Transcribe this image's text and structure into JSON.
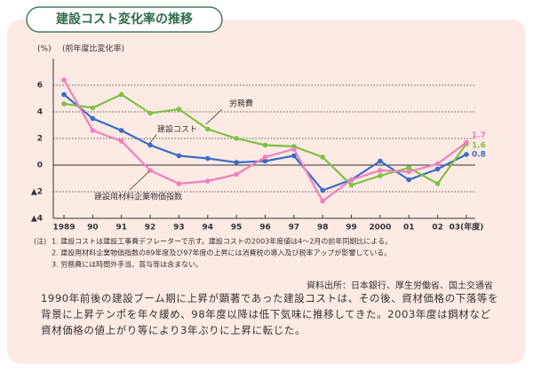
{
  "title": "建設コスト変化率の推移",
  "chart_data": {
    "type": "line",
    "y_unit": "(%)",
    "ylabel": "(前年度比変化率)",
    "categories": [
      "1989",
      "90",
      "91",
      "92",
      "93",
      "94",
      "95",
      "96",
      "97",
      "98",
      "99",
      "2000",
      "01",
      "02",
      "03(年度)"
    ],
    "series": [
      {
        "name": "建設コスト",
        "color": "#3a6cc8",
        "values": [
          5.3,
          3.5,
          2.6,
          1.5,
          0.7,
          0.5,
          0.2,
          0.3,
          0.7,
          -1.9,
          -1.1,
          0.3,
          -1.1,
          -0.3,
          0.8
        ]
      },
      {
        "name": "労務費",
        "color": "#7cc242",
        "values": [
          4.6,
          4.3,
          5.3,
          3.9,
          4.2,
          2.7,
          2.0,
          1.5,
          1.4,
          0.6,
          -1.5,
          -0.8,
          -0.2,
          -1.4,
          1.6
        ]
      },
      {
        "name": "建設用材料企業物価指数",
        "color": "#f07fbc",
        "values": [
          6.4,
          2.6,
          1.8,
          -0.4,
          -1.4,
          -1.2,
          -0.7,
          0.6,
          1.2,
          -2.7,
          -1.1,
          -0.4,
          -0.5,
          0.1,
          1.7
        ]
      }
    ],
    "ylim": [
      -4,
      8
    ],
    "yticks": [
      6,
      4,
      2,
      0,
      {
        "value": -2,
        "label": "▲2"
      },
      {
        "value": -4,
        "label": "▲4"
      }
    ],
    "grid": true
  },
  "notes": [
    "(注)",
    "1. 建設コストは建設工事費デフレーターで示す。建設コストの2003年度値は4～2月の前年同期比による。",
    "2. 建設用材料企業物価指数の89年度及び97年度の上昇には消費税の導入及び税率アップが影響している。",
    "3. 労務費には時間外手当、賞与等は含まない。"
  ],
  "source": "資料出所：日本銀行、厚生労働省、国土交通省",
  "body": "1990年前後の建設ブーム期に上昇が顕著であった建設コストは、その後、資材価格の下落等を背景に上昇テンポを年々緩め、98年度以降は低下気味に推移してきた。2003年度は鋼材など資材価格の値上がり等により3年ぶりに上昇に転じた。"
}
